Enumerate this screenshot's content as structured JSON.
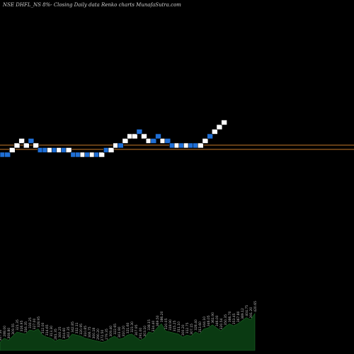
{
  "title": "NSE DHFL_NS 8%-  Closing Daily data  Renko  charts MunafaSutra.com",
  "chart_data": {
    "type": "renko",
    "title": "NSE DHFL_NS 8%-  Closing Daily data  Renko  charts MunafaSutra.com",
    "bricks": [
      {
        "dir": "down"
      },
      {
        "dir": "down"
      },
      {
        "dir": "up"
      },
      {
        "dir": "up"
      },
      {
        "dir": "up"
      },
      {
        "dir": "up"
      },
      {
        "dir": "down"
      },
      {
        "dir": "up"
      },
      {
        "dir": "down"
      },
      {
        "dir": "down"
      },
      {
        "dir": "up"
      },
      {
        "dir": "down"
      },
      {
        "dir": "up"
      },
      {
        "dir": "down"
      },
      {
        "dir": "up"
      },
      {
        "dir": "down"
      },
      {
        "dir": "down"
      },
      {
        "dir": "up"
      },
      {
        "dir": "down"
      },
      {
        "dir": "up"
      },
      {
        "dir": "down"
      },
      {
        "dir": "up"
      },
      {
        "dir": "down"
      },
      {
        "dir": "up"
      },
      {
        "dir": "up"
      },
      {
        "dir": "down"
      },
      {
        "dir": "up"
      },
      {
        "dir": "up"
      },
      {
        "dir": "up"
      },
      {
        "dir": "down"
      },
      {
        "dir": "up"
      },
      {
        "dir": "up"
      },
      {
        "dir": "down"
      },
      {
        "dir": "down"
      },
      {
        "dir": "up"
      },
      {
        "dir": "down"
      },
      {
        "dir": "down"
      },
      {
        "dir": "up"
      },
      {
        "dir": "down"
      },
      {
        "dir": "up"
      },
      {
        "dir": "down"
      },
      {
        "dir": "down"
      },
      {
        "dir": "up"
      },
      {
        "dir": "up"
      },
      {
        "dir": "down"
      },
      {
        "dir": "up"
      },
      {
        "dir": "up"
      },
      {
        "dir": "up"
      }
    ],
    "brick_levels": [
      -1,
      -1,
      0,
      1,
      2,
      1,
      2,
      1,
      0,
      0,
      0,
      0,
      0,
      0,
      0,
      -1,
      -1,
      -1,
      -1,
      -1,
      -1,
      -1,
      0,
      0,
      1,
      1,
      2,
      3,
      3,
      4,
      3,
      2,
      2,
      3,
      2,
      2,
      1,
      1,
      1,
      1,
      1,
      1,
      1,
      2,
      3,
      4,
      5,
      6
    ],
    "horizontal_lines": [
      {
        "name": "line-1"
      },
      {
        "name": "line-2"
      }
    ],
    "volume_labels": [
      "307.50",
      "288.00",
      "308.80",
      "309.55",
      "321.35",
      "316.95",
      "316.35",
      "330.25",
      "327.00",
      "328.95",
      "312.00",
      "314.65",
      "313.30",
      "281.35",
      "300.25",
      "304.60",
      "302.35",
      "342.85",
      "332.11",
      "320.95",
      "310.85",
      "306.75",
      "300.18",
      "290.20",
      "272.50",
      "279.35",
      "309.40",
      "322.65",
      "303.90",
      "310.20",
      "321.60",
      "323.30",
      "307.95",
      "291.00",
      "303.10",
      "338.15",
      "334.40",
      "369.50",
      "386.20",
      "320.05",
      "318.90",
      "315.25",
      "311.10",
      "300.20",
      "312.75",
      "307.15",
      "328.40",
      "313.60",
      "344.10",
      "346.05",
      "361.90",
      "346.00",
      "320.54",
      "350.35",
      "366.70",
      "353.45",
      "367.80",
      "389.12",
      "404.75",
      "391.20",
      "420.65"
    ],
    "volume_values": [
      8,
      12,
      10,
      14,
      18,
      17,
      16,
      20,
      19,
      21,
      15,
      13,
      12,
      9,
      11,
      10,
      11,
      16,
      15,
      14,
      12,
      11,
      10,
      9,
      8,
      9,
      12,
      14,
      11,
      12,
      15,
      16,
      13,
      10,
      12,
      18,
      17,
      22,
      26,
      19,
      18,
      17,
      16,
      13,
      15,
      14,
      18,
      16,
      21,
      22,
      25,
      22,
      19,
      23,
      26,
      24,
      26,
      29,
      32,
      30,
      36
    ],
    "colors": {
      "background": "#000000",
      "up_brick": "#ffffff",
      "down_brick": "#1f6fd6",
      "line": "#c87a2a",
      "volume_fill": "#0a3a12",
      "label_text": "#bdbdbd"
    }
  }
}
